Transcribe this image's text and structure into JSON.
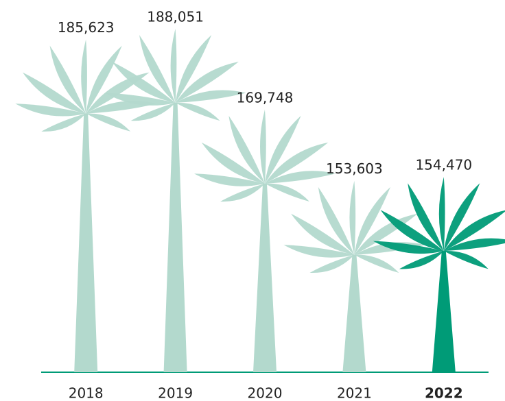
{
  "chart_data": {
    "type": "palm",
    "categories": [
      "2018",
      "2019",
      "2020",
      "2021",
      "2022"
    ],
    "values": [
      185623,
      188051,
      169748,
      153603,
      154470
    ],
    "value_labels": [
      "185,623",
      "188,051",
      "169,748",
      "153,603",
      "154,470"
    ],
    "colors": [
      "#b3d9cd",
      "#b3d9cd",
      "#b3d9cd",
      "#b3d9cd",
      "#009b77"
    ],
    "axis_color": "#009b77",
    "highlight_index": 4,
    "ylim": [
      127000,
      200000
    ]
  }
}
